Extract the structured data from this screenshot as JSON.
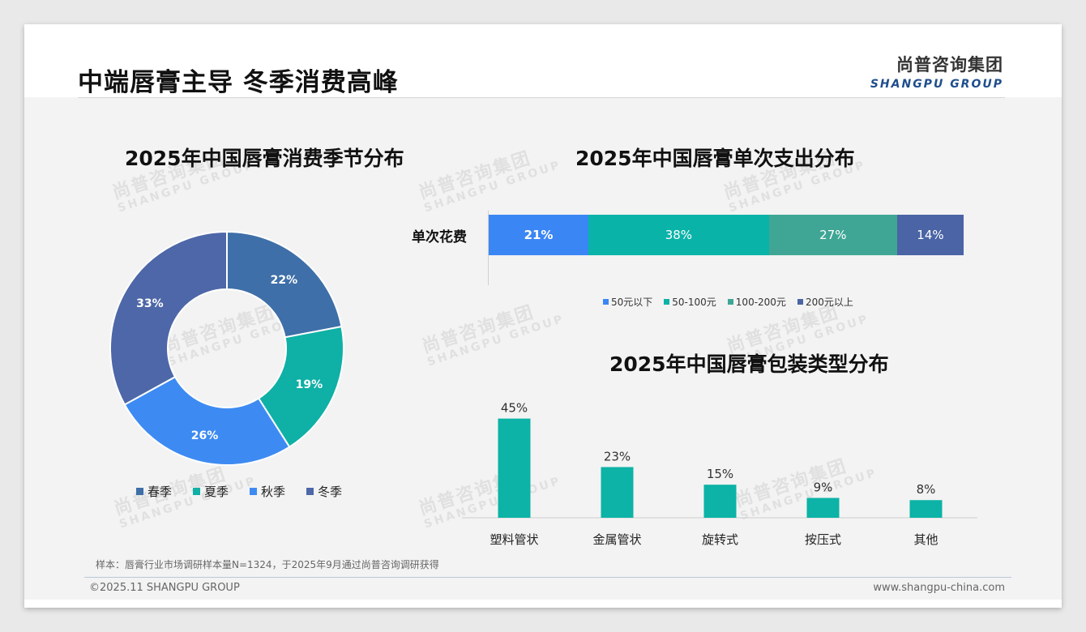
{
  "header": {
    "title": "中端唇膏主导 冬季消费高峰",
    "logo_cn": "尚普咨询集团",
    "logo_en": "SHANGPU GROUP"
  },
  "watermark": {
    "cn": "尚普咨询集团",
    "en": "SHANGPU GROUP"
  },
  "colors": {
    "spring": "#3e6fa8",
    "summer": "#0fb0a6",
    "autumn": "#3d8bf2",
    "winter": "#4d67a8",
    "tier1": "#3b86f5",
    "tier2": "#0ab3a8",
    "tier3": "#3fa695",
    "tier4": "#4a64a5",
    "bar": "#0cb3a6"
  },
  "chart_data": [
    {
      "type": "pie",
      "donut": true,
      "title": "2025年中国唇膏消费季节分布",
      "categories": [
        "春季",
        "夏季",
        "秋季",
        "冬季"
      ],
      "values": [
        22,
        19,
        26,
        33
      ],
      "labels": [
        "22%",
        "19%",
        "26%",
        "33%"
      ],
      "legend": "bottom"
    },
    {
      "type": "bar",
      "stacked": true,
      "orientation": "horizontal",
      "title": "2025年中国唇膏单次支出分布",
      "categories": [
        "单次花费"
      ],
      "series": [
        {
          "name": "50元以下",
          "values": [
            21
          ],
          "label": "21%"
        },
        {
          "name": "50-100元",
          "values": [
            38
          ],
          "label": "38%"
        },
        {
          "name": "100-200元",
          "values": [
            27
          ],
          "label": "27%"
        },
        {
          "name": "200元以上",
          "values": [
            14
          ],
          "label": "14%"
        }
      ],
      "legend": "bottom"
    },
    {
      "type": "bar",
      "title": "2025年中国唇膏包装类型分布",
      "categories": [
        "塑料管状",
        "金属管状",
        "旋转式",
        "按压式",
        "其他"
      ],
      "values": [
        45,
        23,
        15,
        9,
        8
      ],
      "labels": [
        "45%",
        "23%",
        "15%",
        "9%",
        "8%"
      ],
      "ylim": [
        0,
        50
      ]
    }
  ],
  "footer": {
    "note": "样本：唇膏行业市场调研样本量N=1324，于2025年9月通过尚普咨询调研获得",
    "copyright": "©2025.11 SHANGPU GROUP",
    "website": "www.shangpu-china.com"
  }
}
